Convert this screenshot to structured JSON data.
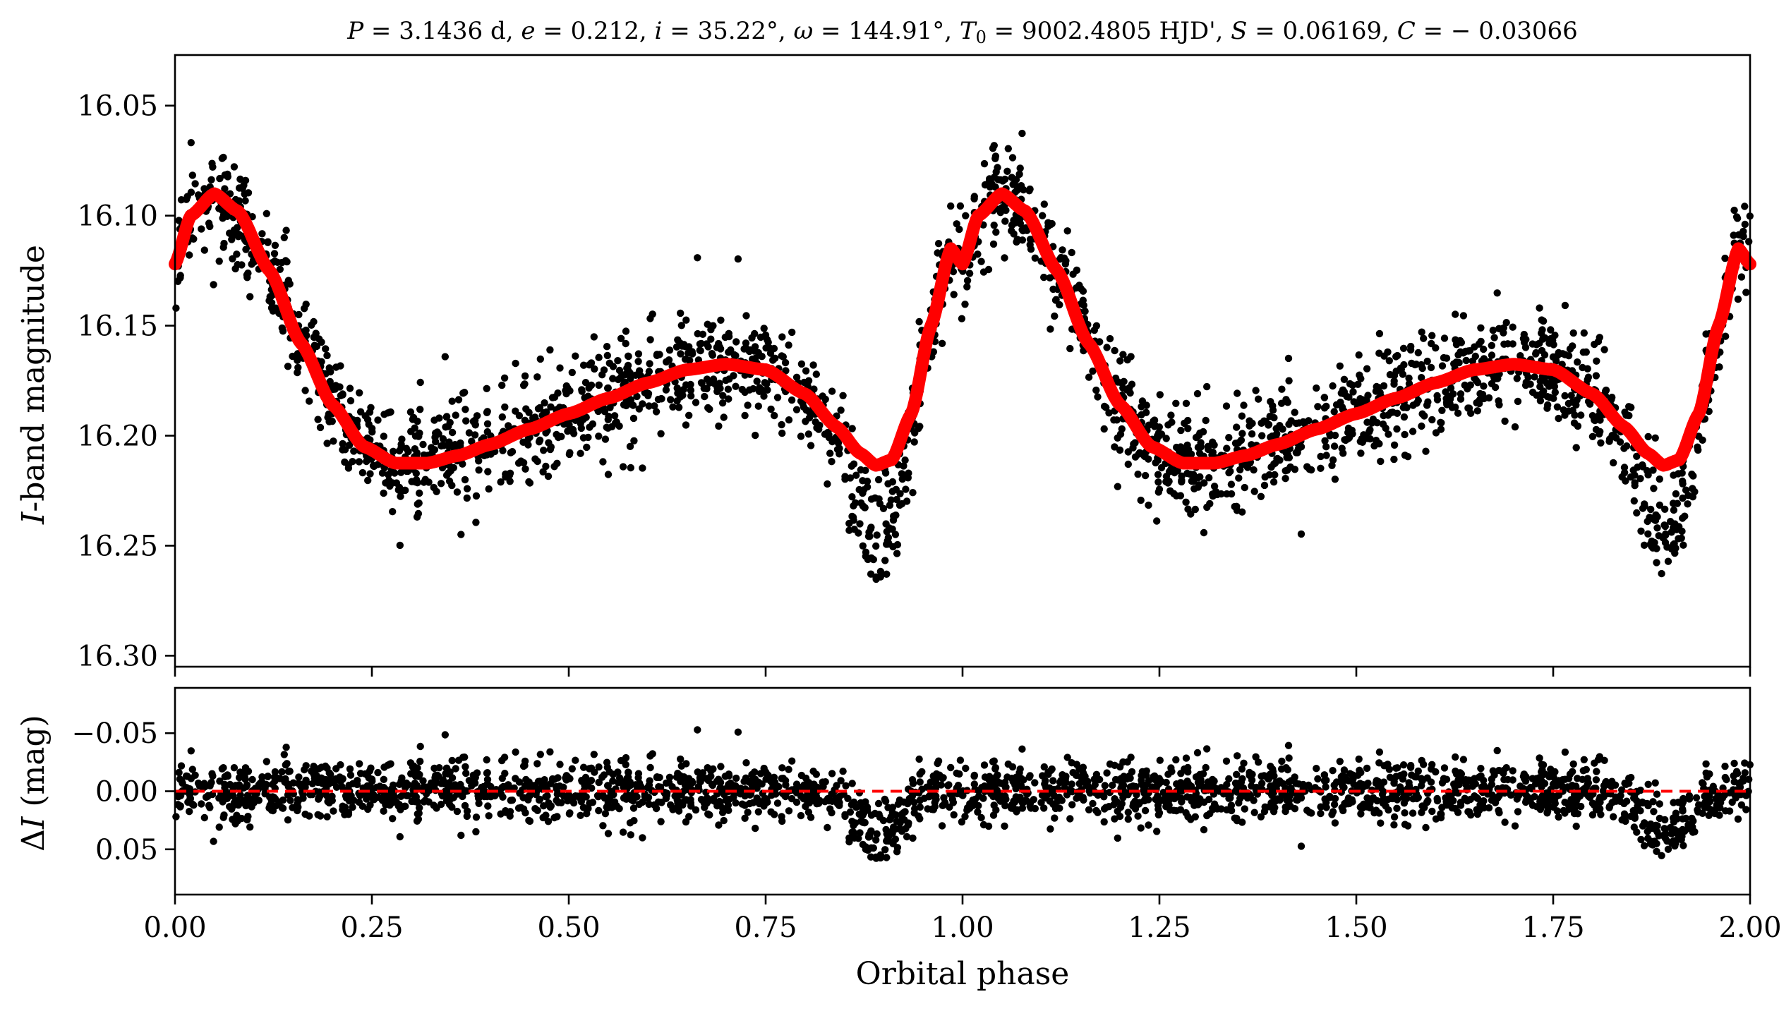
{
  "chart_data": [
    {
      "type": "scatter",
      "panel": "light-curve",
      "title": "P = 3.1436 d, e = 0.212, i = 35.22°, ω = 144.91°, T0 = 9002.4805 HJD', S = 0.06169, C = −0.03066",
      "title_parts": {
        "P": "P",
        "P_value": " = 3.1436 d, ",
        "e": "e",
        "e_value": " = 0.212, ",
        "i": "i",
        "i_value": " = 35.22°, ",
        "omega": "ω",
        "omega_value": " = 144.91°, ",
        "T": "T",
        "T_sub": "0",
        "T_value": " = 9002.4805 HJD', ",
        "S": "S",
        "S_value": " = 0.06169, ",
        "C": "C",
        "C_value": " = − 0.03066"
      },
      "ylabel_italic": "I",
      "ylabel_rest": "-band magnitude",
      "xlabel": "",
      "xlim": [
        0.0,
        2.0
      ],
      "ylim": [
        16.305,
        16.027
      ],
      "y_inverted": true,
      "yticks": [
        16.05,
        16.1,
        16.15,
        16.2,
        16.25,
        16.3
      ],
      "ytick_labels": [
        "16.05",
        "16.10",
        "16.15",
        "16.20",
        "16.25",
        "16.30"
      ],
      "series": [
        {
          "name": "observations",
          "kind": "scatter",
          "color": "#000000",
          "description_model": "points scattered about model curve, phase 0–2",
          "n_points_per_cycle": 1200,
          "scatter_sigma_mag": 0.012
        },
        {
          "name": "model",
          "kind": "line",
          "color": "#ff0000",
          "model_points": [
            [
              0.0,
              16.122
            ],
            [
              0.02,
              16.1
            ],
            [
              0.05,
              16.09
            ],
            [
              0.08,
              16.098
            ],
            [
              0.12,
              16.125
            ],
            [
              0.16,
              16.158
            ],
            [
              0.2,
              16.186
            ],
            [
              0.24,
              16.205
            ],
            [
              0.28,
              16.2125
            ],
            [
              0.32,
              16.2125
            ],
            [
              0.36,
              16.209
            ],
            [
              0.4,
              16.204
            ],
            [
              0.45,
              16.197
            ],
            [
              0.5,
              16.19
            ],
            [
              0.55,
              16.183
            ],
            [
              0.6,
              16.176
            ],
            [
              0.65,
              16.17
            ],
            [
              0.7,
              16.1675
            ],
            [
              0.75,
              16.17
            ],
            [
              0.8,
              16.181
            ],
            [
              0.84,
              16.196
            ],
            [
              0.87,
              16.208
            ],
            [
              0.89,
              16.2135
            ],
            [
              0.91,
              16.211
            ],
            [
              0.935,
              16.19
            ],
            [
              0.96,
              16.15
            ],
            [
              0.985,
              16.115
            ],
            [
              1.0,
              16.122
            ]
          ]
        }
      ]
    },
    {
      "type": "scatter",
      "panel": "residuals",
      "ylabel_delta": "Δ",
      "ylabel_italic": "I",
      "ylabel_rest": " (mag)",
      "xlabel": "Orbital phase",
      "xlim": [
        0.0,
        2.0
      ],
      "ylim": [
        0.089,
        -0.089
      ],
      "y_inverted": true,
      "yticks": [
        -0.05,
        0.0,
        0.05
      ],
      "ytick_labels": [
        "−0.05",
        "0.00",
        "0.05"
      ],
      "xticks": [
        0.0,
        0.25,
        0.5,
        0.75,
        1.0,
        1.25,
        1.5,
        1.75,
        2.0
      ],
      "xtick_labels": [
        "0.00",
        "0.25",
        "0.50",
        "0.75",
        "1.00",
        "1.25",
        "1.50",
        "1.75",
        "2.00"
      ],
      "series": [
        {
          "name": "residuals",
          "kind": "scatter",
          "color": "#000000",
          "scatter_sigma_mag": 0.013,
          "dip_center_phase": 0.895,
          "dip_depth_mag": 0.04
        },
        {
          "name": "zero-line",
          "kind": "dashed-line",
          "color": "#ff0000",
          "y": 0.0
        }
      ]
    }
  ]
}
